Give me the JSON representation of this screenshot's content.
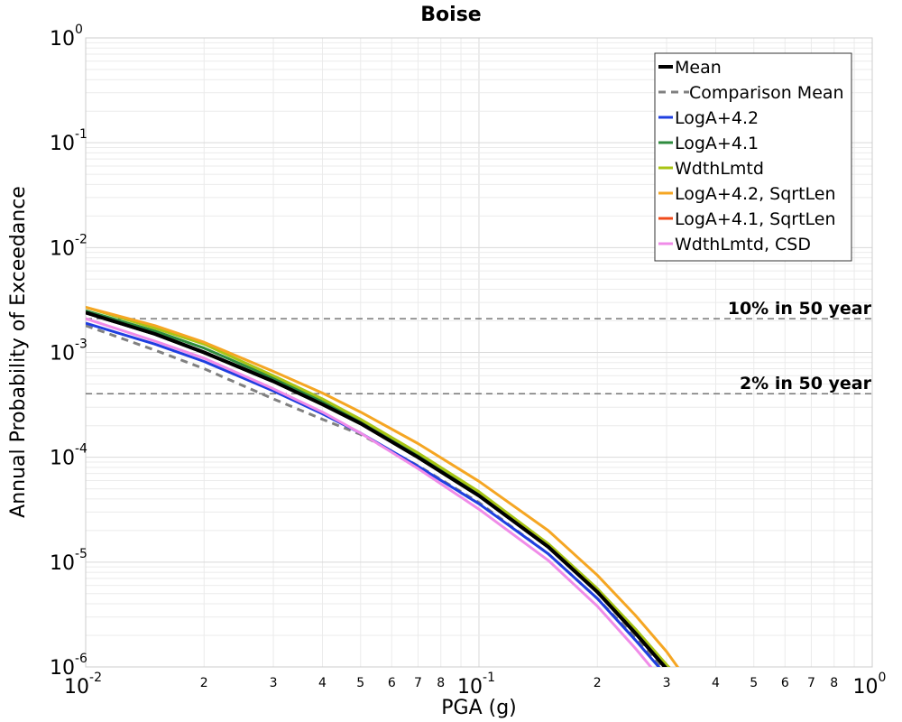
{
  "chart_data": {
    "type": "line",
    "title": "Boise",
    "xlabel": "PGA (g)",
    "ylabel": "Annual Probability of Exceedance",
    "x_scale": "log",
    "y_scale": "log",
    "xlim": [
      0.01,
      1.0
    ],
    "ylim": [
      1e-06,
      1.0
    ],
    "grid": true,
    "legend_position": "top-right",
    "x_major_ticks": [
      {
        "base": "10",
        "exp": "-2"
      },
      {
        "base": "10",
        "exp": "-1"
      },
      {
        "base": "10",
        "exp": "0"
      }
    ],
    "x_minor_labels": [
      "2",
      "3",
      "4",
      "5",
      "6",
      "7",
      "8"
    ],
    "y_major_ticks": [
      {
        "base": "10",
        "exp": "0"
      },
      {
        "base": "10",
        "exp": "-1"
      },
      {
        "base": "10",
        "exp": "-2"
      },
      {
        "base": "10",
        "exp": "-3"
      },
      {
        "base": "10",
        "exp": "-4"
      },
      {
        "base": "10",
        "exp": "-5"
      },
      {
        "base": "10",
        "exp": "-6"
      }
    ],
    "reference_lines": [
      {
        "label": "10% in 50 year",
        "y": 0.0021
      },
      {
        "label": "2% in 50 year",
        "y": 0.000404
      }
    ],
    "series": [
      {
        "name": "Mean",
        "color": "#000000",
        "dash": "solid",
        "width": 4,
        "x": [
          0.01,
          0.015,
          0.02,
          0.03,
          0.04,
          0.05,
          0.07,
          0.1,
          0.15,
          0.2,
          0.25,
          0.3,
          0.32
        ],
        "y": [
          0.0024,
          0.0015,
          0.001,
          0.00053,
          0.00032,
          0.00021,
          0.0001,
          4.3e-05,
          1.4e-05,
          5.2e-06,
          2.1e-06,
          9.6e-07,
          7.5e-07
        ]
      },
      {
        "name": "Comparison Mean",
        "color": "#808080",
        "dash": "dashed",
        "width": 3,
        "x": [
          0.01,
          0.015,
          0.02,
          0.03,
          0.04,
          0.05,
          0.07,
          0.1,
          0.15,
          0.2,
          0.25,
          0.3,
          0.31
        ],
        "y": [
          0.0018,
          0.00105,
          0.0007,
          0.00036,
          0.00023,
          0.000165,
          8.3e-05,
          3.7e-05,
          1.2e-05,
          4.5e-06,
          1.9e-06,
          8.8e-07,
          7.8e-07
        ]
      },
      {
        "name": "LogA+4.2",
        "color": "#1f3fe0",
        "dash": "solid",
        "width": 3,
        "x": [
          0.01,
          0.015,
          0.02,
          0.03,
          0.04,
          0.05,
          0.07,
          0.1,
          0.15,
          0.2,
          0.25,
          0.3,
          0.31
        ],
        "y": [
          0.0019,
          0.0012,
          0.00082,
          0.00043,
          0.00026,
          0.00017,
          8.2e-05,
          3.6e-05,
          1.2e-05,
          4.5e-06,
          1.8e-06,
          8.2e-07,
          7.5e-07
        ]
      },
      {
        "name": "LogA+4.1",
        "color": "#2e8b3e",
        "dash": "solid",
        "width": 3,
        "x": [
          0.01,
          0.015,
          0.02,
          0.03,
          0.04,
          0.05,
          0.07,
          0.1,
          0.15,
          0.2,
          0.25,
          0.3,
          0.32
        ],
        "y": [
          0.0025,
          0.0016,
          0.0011,
          0.00057,
          0.00034,
          0.00022,
          0.000105,
          4.5e-05,
          1.45e-05,
          5.4e-06,
          2.2e-06,
          1e-06,
          8e-07
        ]
      },
      {
        "name": "WdthLmtd",
        "color": "#a8c414",
        "dash": "solid",
        "width": 3,
        "x": [
          0.01,
          0.015,
          0.02,
          0.03,
          0.04,
          0.05,
          0.07,
          0.1,
          0.15,
          0.2,
          0.25,
          0.3,
          0.32
        ],
        "y": [
          0.0027,
          0.0017,
          0.0012,
          0.0006,
          0.00036,
          0.00023,
          0.00011,
          4.7e-05,
          1.5e-05,
          5.6e-06,
          2.3e-06,
          1.05e-06,
          8.2e-07
        ]
      },
      {
        "name": "LogA+4.2, SqrtLen",
        "color": "#f5a623",
        "dash": "solid",
        "width": 3,
        "x": [
          0.01,
          0.015,
          0.02,
          0.03,
          0.04,
          0.05,
          0.07,
          0.1,
          0.15,
          0.2,
          0.25,
          0.3,
          0.33
        ],
        "y": [
          0.0027,
          0.0018,
          0.00125,
          0.00066,
          0.00041,
          0.00027,
          0.000135,
          5.9e-05,
          2e-05,
          7.5e-06,
          3.1e-06,
          1.4e-06,
          8.5e-07
        ]
      },
      {
        "name": "LogA+4.1, SqrtLen",
        "color": "#f04a1a",
        "dash": "solid",
        "width": 3,
        "x": [
          0.01,
          0.015,
          0.02,
          0.03,
          0.04,
          0.05,
          0.07,
          0.1,
          0.15,
          0.2,
          0.25,
          0.3,
          0.32
        ],
        "y": [
          0.0024,
          0.0015,
          0.001,
          0.00053,
          0.00032,
          0.00021,
          0.0001,
          4.3e-05,
          1.4e-05,
          5.2e-06,
          2.1e-06,
          9.6e-07,
          7.5e-07
        ]
      },
      {
        "name": "WdthLmtd, CSD",
        "color": "#f08ce8",
        "dash": "solid",
        "width": 3,
        "x": [
          0.01,
          0.015,
          0.02,
          0.03,
          0.04,
          0.05,
          0.07,
          0.1,
          0.15,
          0.2,
          0.25,
          0.3
        ],
        "y": [
          0.0021,
          0.00128,
          0.00088,
          0.00045,
          0.00027,
          0.00017,
          7.8e-05,
          3.2e-05,
          1.04e-05,
          3.8e-06,
          1.5e-06,
          6.6e-07
        ]
      }
    ]
  }
}
